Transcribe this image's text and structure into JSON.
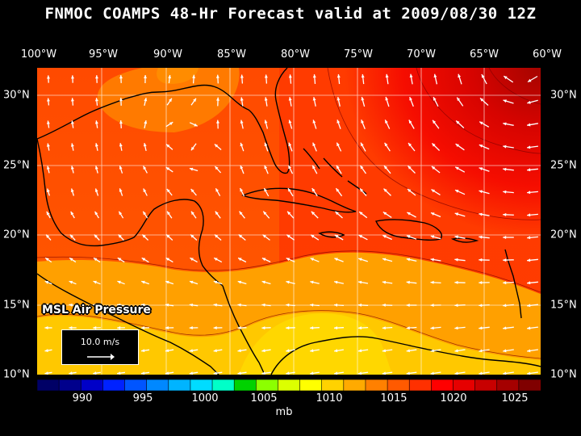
{
  "title": "FNMOC COAMPS 48-Hr Forecast valid at 2009/08/30 12Z",
  "longitude_labels": [
    "100°W",
    "95°W",
    "90°W",
    "85°W",
    "80°W",
    "75°W",
    "70°W",
    "65°W",
    "60°W"
  ],
  "latitude_labels": [
    "30°N",
    "25°N",
    "20°N",
    "15°N",
    "10°N"
  ],
  "layer_label": "MSL Air Pressure",
  "wind_legend": {
    "label": "10.0 m/s",
    "icon": "wind-vector-arrow"
  },
  "colorbar": {
    "tick_labels": [
      "990",
      "995",
      "1000",
      "1005",
      "1010",
      "1015",
      "1020",
      "1025"
    ],
    "units": "mb",
    "colors": [
      "#000066",
      "#00008c",
      "#0000c8",
      "#0022ff",
      "#0055ff",
      "#0088ff",
      "#00b4ff",
      "#00dcff",
      "#00ffc8",
      "#00d200",
      "#8cff00",
      "#dcff00",
      "#ffff00",
      "#ffd200",
      "#ffaa00",
      "#ff8000",
      "#ff5a00",
      "#ff3000",
      "#ff0000",
      "#e60000",
      "#c80000",
      "#a50000",
      "#800000"
    ]
  },
  "colors": {
    "land_outline": "#000000",
    "wind_vectors": "#ffffff",
    "grid": "#ffffff"
  }
}
